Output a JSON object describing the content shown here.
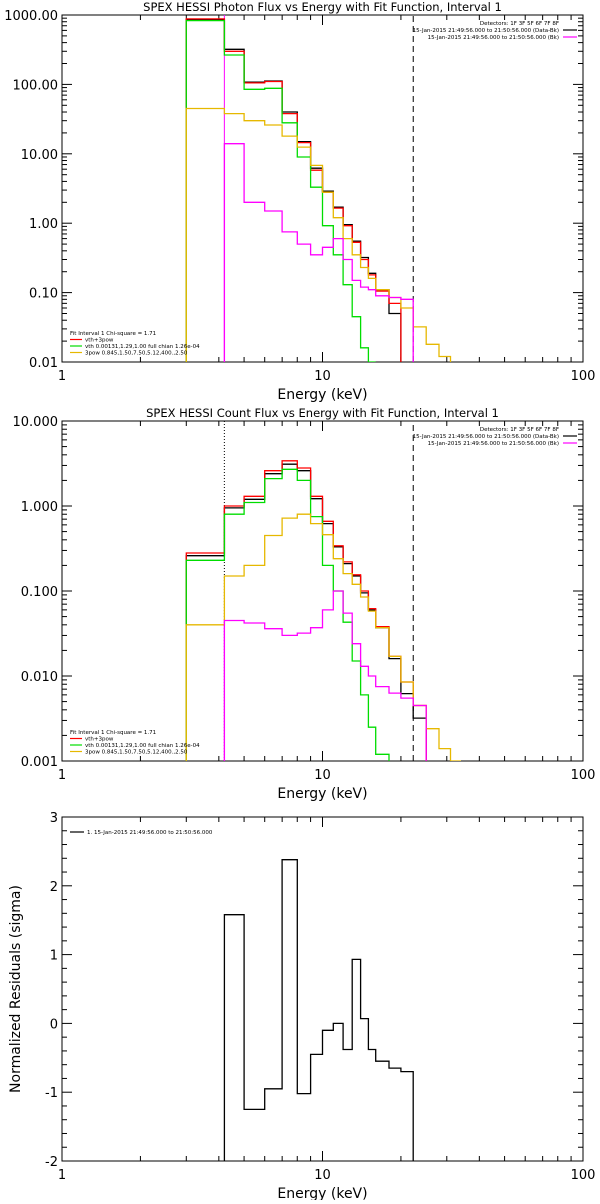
{
  "chart_data": [
    {
      "type": "line",
      "title": "SPEX HESSI Photon Flux vs Energy with Fit Function, Interval 1",
      "xlabel": "Energy (keV)",
      "ylabel": "",
      "xscale": "log",
      "yscale": "log",
      "xlim": [
        1,
        100
      ],
      "ylim": [
        0.01,
        1000
      ],
      "x_ticks": [
        1,
        10,
        100
      ],
      "x_tick_labels": [
        "1",
        "10",
        "100"
      ],
      "y_ticks": [
        0.01,
        0.1,
        1,
        10,
        100,
        1000
      ],
      "y_tick_labels": [
        "0.01",
        "0.10",
        "1.00",
        "10.00",
        "100.00",
        "1000.00"
      ],
      "legend_top": {
        "placement": "top-right",
        "header": "Detectors: 1F 3F 5F 6F 7F 8F",
        "entries": [
          {
            "label": "15-Jan-2015 21:49:56.000 to 21:50:56.000 (Data-Bk)",
            "color": "#000000"
          },
          {
            "label": "15-Jan-2015 21:49:56.000 to 21:50:56.000 (Bk)",
            "color": "#ff00ff"
          }
        ]
      },
      "legend_bottom": {
        "placement": "bottom-left",
        "header": "Fit Interval 1    Chi-square = 1.71",
        "entries": [
          {
            "label": "vth+3pow",
            "color": "#ff0000"
          },
          {
            "label": "vth 0.00131,1.29,1.00  full chian 1.26e-04",
            "color": "#00dd00"
          },
          {
            "label": "3pow 0.845,1.50,7.50,5.12,400.,2.50",
            "color": "#e6b800"
          }
        ]
      },
      "vlines": [
        {
          "x": 4.2,
          "style": "solid",
          "color": "#ff00ff"
        },
        {
          "x": 22.3,
          "style": "dashed",
          "color": "#000000"
        }
      ],
      "edges": [
        3.0,
        4.2,
        5.0,
        6.0,
        7.0,
        8.0,
        9.0,
        10.0,
        11.0,
        12.0,
        13.0,
        14.0,
        15.0,
        16.0,
        18.0,
        20.0,
        22.3,
        25.0,
        28.0,
        31.0
      ],
      "series": [
        {
          "name": "data-bk",
          "color": "#000000",
          "values": [
            850,
            320,
            108,
            112,
            40,
            15,
            6.2,
            2.9,
            1.7,
            0.95,
            0.55,
            0.32,
            0.19,
            0.11,
            0.05,
            null,
            null,
            null,
            null
          ]
        },
        {
          "name": "vth+3pow",
          "color": "#ff0000",
          "values": [
            880,
            300,
            105,
            110,
            38,
            14.5,
            5.8,
            2.8,
            1.65,
            0.92,
            0.53,
            0.3,
            0.18,
            0.105,
            0.07,
            null,
            null,
            null,
            null
          ]
        },
        {
          "name": "vth",
          "color": "#00dd00",
          "values": [
            830,
            265,
            85,
            88,
            28,
            9,
            3.3,
            0.92,
            0.35,
            0.13,
            0.045,
            0.016,
            0.01,
            null,
            null,
            null,
            null,
            null,
            null
          ]
        },
        {
          "name": "3pow",
          "color": "#e6b800",
          "values": [
            45,
            38,
            30,
            26,
            18,
            12.5,
            6.8,
            2.8,
            1.2,
            0.6,
            0.35,
            0.23,
            0.16,
            0.11,
            0.085,
            0.06,
            0.032,
            0.018,
            0.012
          ]
        },
        {
          "name": "bk",
          "color": "#ff00ff",
          "values": [
            null,
            14,
            2,
            1.5,
            0.75,
            0.5,
            0.35,
            0.45,
            0.6,
            0.3,
            0.15,
            0.12,
            0.11,
            0.09,
            0.085,
            0.08,
            null,
            null,
            null
          ]
        }
      ]
    },
    {
      "type": "line",
      "title": "SPEX HESSI Count Flux vs Energy with Fit Function, Interval 1",
      "xlabel": "Energy (keV)",
      "ylabel": "",
      "xscale": "log",
      "yscale": "log",
      "xlim": [
        1,
        100
      ],
      "ylim": [
        0.001,
        10
      ],
      "x_ticks": [
        1,
        10,
        100
      ],
      "x_tick_labels": [
        "1",
        "10",
        "100"
      ],
      "y_ticks": [
        0.001,
        0.01,
        0.1,
        1,
        10
      ],
      "y_tick_labels": [
        "0.001",
        "0.010",
        "0.100",
        "1.000",
        "10.000"
      ],
      "legend_top": {
        "placement": "top-right",
        "header": "Detectors: 1F 3F 5F 6F 7F 8F",
        "entries": [
          {
            "label": "15-Jan-2015 21:49:56.000 to 21:50:56.000 (Data-Bk)",
            "color": "#000000"
          },
          {
            "label": "15-Jan-2015 21:49:56.000 to 21:50:56.000 (Bk)",
            "color": "#ff00ff"
          }
        ]
      },
      "legend_bottom": {
        "placement": "bottom-left",
        "header": "Fit Interval 1    Chi-square = 1.71",
        "entries": [
          {
            "label": "vth+3pow",
            "color": "#ff0000"
          },
          {
            "label": "vth 0.00131,1.29,1.00  full chian 1.26e-04",
            "color": "#00dd00"
          },
          {
            "label": "3pow 0.845,1.50,7.50,5.12,400.,2.50",
            "color": "#e6b800"
          }
        ]
      },
      "vlines": [
        {
          "x": 4.2,
          "style": "dotted",
          "color": "#000000"
        },
        {
          "x": 4.2,
          "style": "solid",
          "color": "#ff00ff",
          "from": 0.001,
          "to": 0.04
        },
        {
          "x": 22.3,
          "style": "dashed",
          "color": "#000000"
        }
      ],
      "edges": [
        3.0,
        4.2,
        5.0,
        6.0,
        7.0,
        8.0,
        9.0,
        10.0,
        11.0,
        12.0,
        13.0,
        14.0,
        15.0,
        16.0,
        18.0,
        20.0,
        22.3,
        25.0,
        28.0,
        31.0,
        34.0
      ],
      "series": [
        {
          "name": "data-bk",
          "color": "#000000",
          "values": [
            0.26,
            0.95,
            1.2,
            2.4,
            3.1,
            2.6,
            1.22,
            0.62,
            0.33,
            0.21,
            0.15,
            0.095,
            0.06,
            0.037,
            0.016,
            0.0062,
            0.0032,
            null,
            null,
            null
          ]
        },
        {
          "name": "vth+3pow",
          "color": "#ff0000",
          "values": [
            0.28,
            1.0,
            1.3,
            2.6,
            3.4,
            2.8,
            1.3,
            0.66,
            0.34,
            0.22,
            0.155,
            0.1,
            0.062,
            0.038,
            0.017,
            0.0085,
            0.0045,
            null,
            null,
            null
          ]
        },
        {
          "name": "vth",
          "color": "#00dd00",
          "values": [
            0.23,
            0.8,
            1.1,
            2.1,
            2.7,
            2.0,
            0.75,
            0.2,
            0.1,
            0.043,
            0.015,
            0.006,
            0.0025,
            0.0012,
            null,
            null,
            null,
            null,
            null,
            null
          ]
        },
        {
          "name": "3pow",
          "color": "#e6b800",
          "values": [
            0.04,
            0.15,
            0.2,
            0.45,
            0.72,
            0.8,
            0.62,
            0.46,
            0.24,
            0.16,
            0.12,
            0.085,
            0.058,
            0.037,
            0.017,
            0.0085,
            0.0045,
            0.0024,
            0.0014,
            0.001
          ]
        },
        {
          "name": "bk",
          "color": "#ff00ff",
          "values": [
            null,
            0.045,
            0.042,
            0.036,
            0.03,
            0.032,
            0.037,
            0.06,
            0.1,
            0.055,
            0.024,
            0.013,
            0.01,
            0.0075,
            0.0063,
            0.0055,
            0.0045,
            null,
            null,
            null
          ]
        }
      ]
    },
    {
      "type": "line",
      "title": "",
      "xlabel": "Energy (keV)",
      "ylabel": "Normalized Residuals (sigma)",
      "xscale": "log",
      "yscale": "linear",
      "xlim": [
        1,
        100
      ],
      "ylim": [
        -2,
        3
      ],
      "x_ticks": [
        1,
        10,
        100
      ],
      "x_tick_labels": [
        "1",
        "10",
        "100"
      ],
      "y_ticks": [
        -2,
        -1,
        0,
        1,
        2,
        3
      ],
      "y_tick_labels": [
        "-2",
        "-1",
        "0",
        "1",
        "2",
        "3"
      ],
      "legend_top": {
        "placement": "top-left",
        "header": "",
        "entries": [
          {
            "label": "1. 15-Jan-2015 21:49:56.000 to 21:50:56.000",
            "color": "#000000"
          }
        ]
      },
      "legend_bottom": null,
      "vlines": [],
      "edges": [
        4.2,
        5.0,
        6.0,
        7.0,
        8.0,
        9.0,
        10.0,
        11.0,
        12.0,
        13.0,
        14.0,
        15.0,
        16.0,
        18.0,
        20.0,
        22.3
      ],
      "series": [
        {
          "name": "residuals",
          "color": "#000000",
          "values": [
            1.58,
            -1.25,
            -0.95,
            2.38,
            -1.02,
            -0.45,
            -0.1,
            0.0,
            -0.38,
            0.93,
            0.07,
            -0.38,
            -0.55,
            -0.65,
            -0.7
          ],
          "drop_to_floor": true
        }
      ]
    }
  ]
}
